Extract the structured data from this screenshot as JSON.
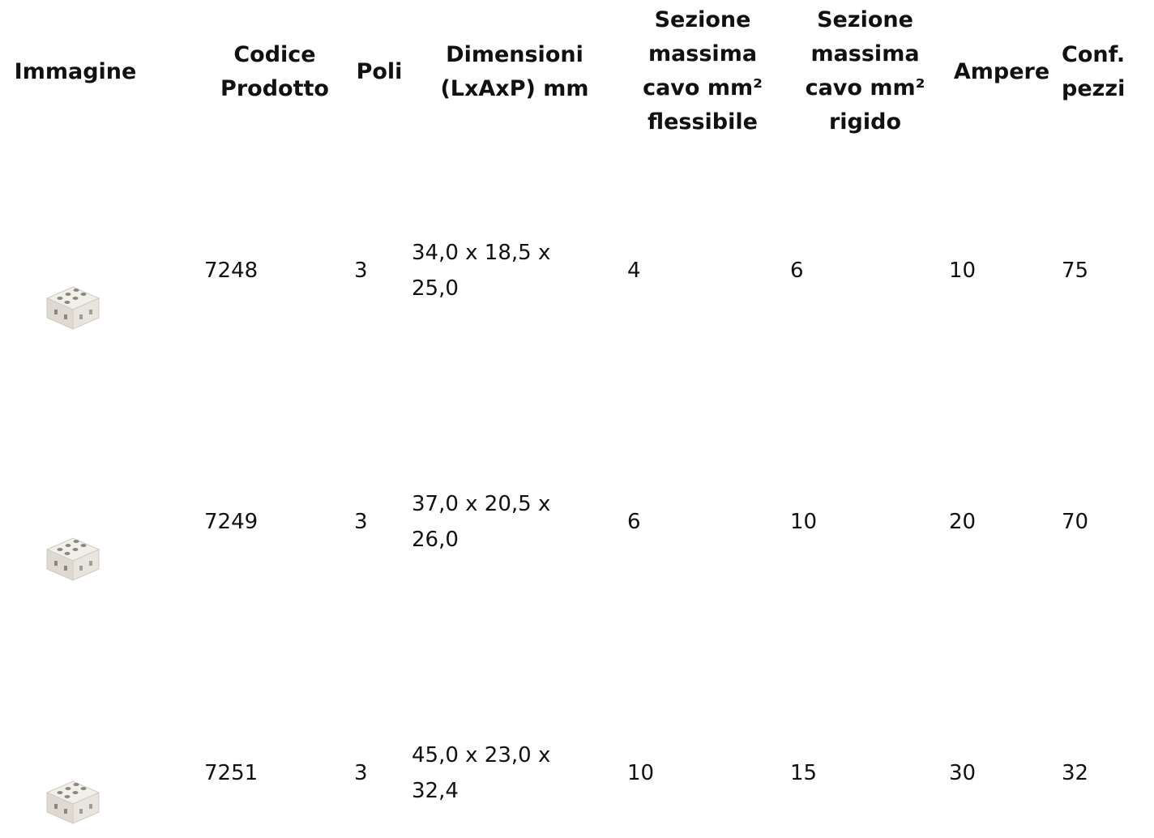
{
  "table": {
    "headers": {
      "image": "Immagine",
      "code": "Codice\nProdotto",
      "poles": "Poli",
      "dimensions": "Dimensioni\n(LxAxP) mm",
      "flexible": "Sezione\nmassima\ncavo mm²\nflessibile",
      "rigid": "Sezione\nmassima\ncavo mm²\nrigido",
      "ampere": "Ampere",
      "pack": "Conf.\npezzi"
    },
    "rows": [
      {
        "image_icon": "terminal-block-icon",
        "code": "7248",
        "poles": "3",
        "dimensions": "34,0 x 18,5 x\n25,0",
        "flexible": "4",
        "rigid": "6",
        "ampere": "10",
        "pack": "75"
      },
      {
        "image_icon": "terminal-block-icon",
        "code": "7249",
        "poles": "3",
        "dimensions": "37,0 x 20,5 x\n26,0",
        "flexible": "6",
        "rigid": "10",
        "ampere": "20",
        "pack": "70"
      },
      {
        "image_icon": "terminal-block-icon",
        "code": "7251",
        "poles": "3",
        "dimensions": "45,0 x 23,0 x\n32,4",
        "flexible": "10",
        "rigid": "15",
        "ampere": "30",
        "pack": "32"
      }
    ]
  }
}
